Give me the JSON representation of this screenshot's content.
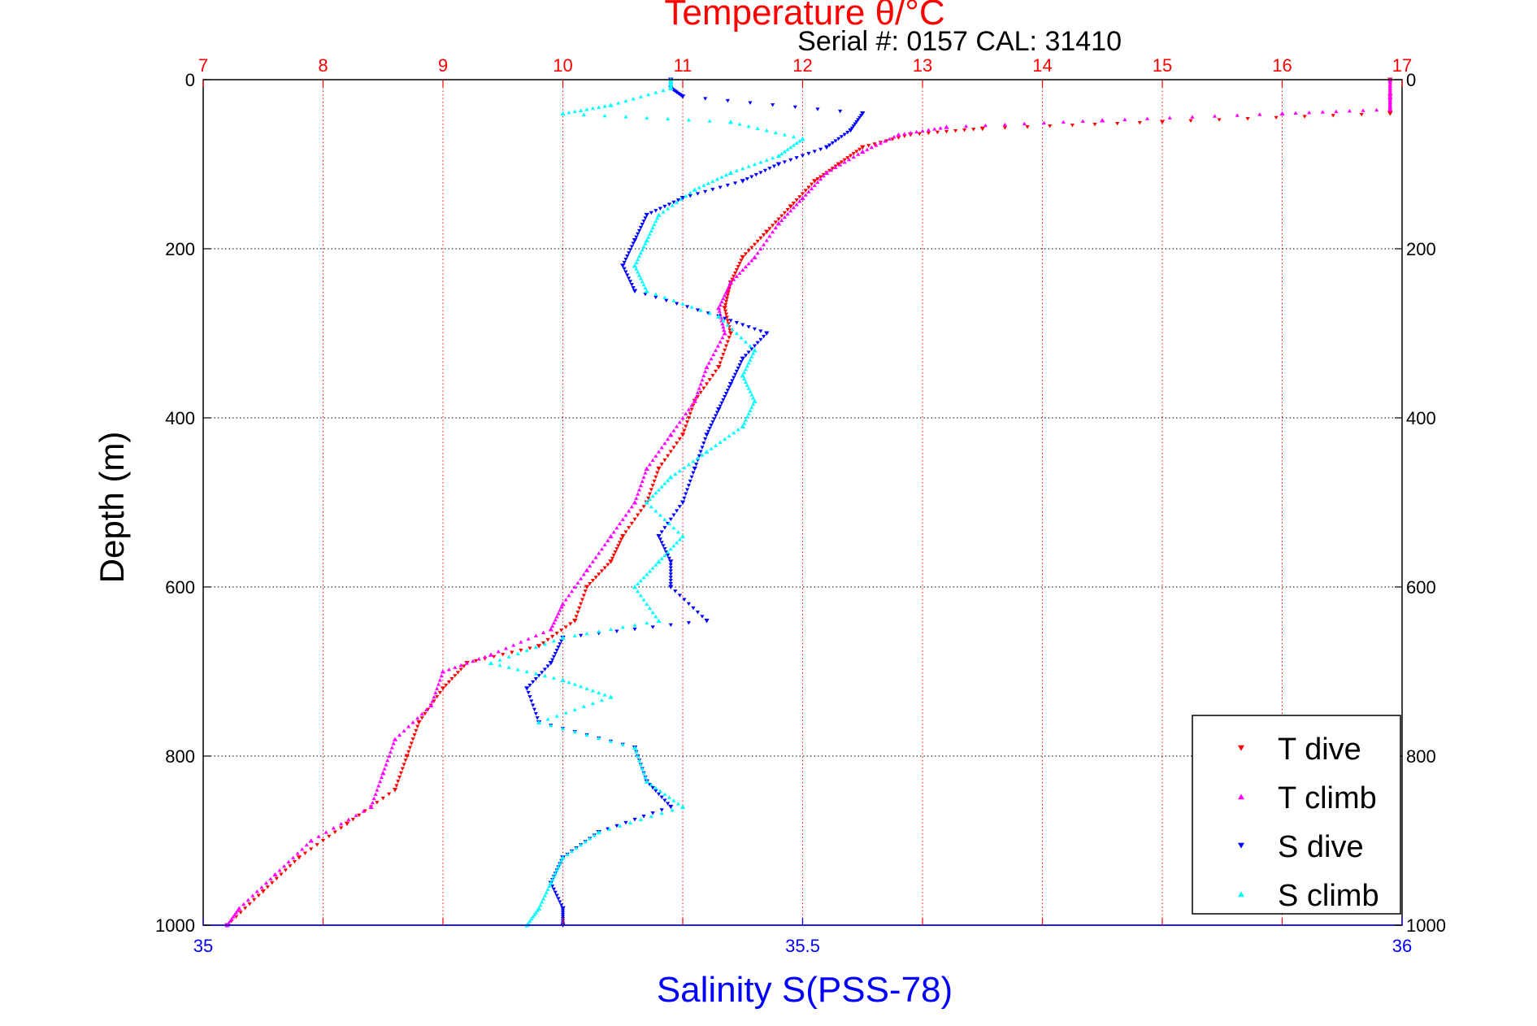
{
  "chart_data": {
    "type": "scatter",
    "title": "Temperature θ/°C",
    "subtitle": "Serial #: 0157  CAL: 31410",
    "xlabel_bottom": "Salinity S(PSS-78)",
    "xlabel_top": "Temperature θ/°C",
    "ylabel": "Depth (m)",
    "ylim": [
      0,
      1000
    ],
    "y_reversed": true,
    "xlim_bottom": [
      35,
      36
    ],
    "xlim_top": [
      7,
      17
    ],
    "y_ticks": [
      "0",
      "200",
      "400",
      "600",
      "800",
      "1000"
    ],
    "y_tick_values": [
      0,
      200,
      400,
      600,
      800,
      1000
    ],
    "x_bottom_ticks": [
      "35",
      "35.5",
      "36"
    ],
    "x_bottom_tick_values": [
      35,
      35.5,
      36
    ],
    "x_top_ticks": [
      "7",
      "8",
      "9",
      "10",
      "11",
      "12",
      "13",
      "14",
      "15",
      "16",
      "17"
    ],
    "x_top_tick_values": [
      7,
      8,
      9,
      10,
      11,
      12,
      13,
      14,
      15,
      16,
      17
    ],
    "grid": true,
    "legend_position": "bottom-right",
    "colors": {
      "top_axis": "#ff0000",
      "bottom_axis": "#0000ff",
      "grid": "#000000",
      "frame": "#000000"
    },
    "series": [
      {
        "name": "T dive",
        "axis": "top",
        "marker": "down-triangle",
        "color": "#ff0000",
        "points": [
          [
            16.9,
            0
          ],
          [
            16.9,
            20
          ],
          [
            16.9,
            40
          ],
          [
            15.0,
            50
          ],
          [
            13.5,
            58
          ],
          [
            12.9,
            65
          ],
          [
            12.5,
            80
          ],
          [
            12.3,
            100
          ],
          [
            12.1,
            120
          ],
          [
            11.9,
            150
          ],
          [
            11.7,
            180
          ],
          [
            11.5,
            210
          ],
          [
            11.4,
            240
          ],
          [
            11.35,
            270
          ],
          [
            11.4,
            300
          ],
          [
            11.3,
            340
          ],
          [
            11.1,
            380
          ],
          [
            11.0,
            420
          ],
          [
            10.8,
            460
          ],
          [
            10.7,
            500
          ],
          [
            10.5,
            540
          ],
          [
            10.4,
            570
          ],
          [
            10.2,
            600
          ],
          [
            10.1,
            640
          ],
          [
            9.8,
            670
          ],
          [
            9.2,
            690
          ],
          [
            9.0,
            720
          ],
          [
            8.8,
            760
          ],
          [
            8.7,
            800
          ],
          [
            8.6,
            840
          ],
          [
            8.2,
            880
          ],
          [
            7.8,
            920
          ],
          [
            7.5,
            960
          ],
          [
            7.2,
            1000
          ]
        ]
      },
      {
        "name": "T climb",
        "axis": "top",
        "marker": "up-triangle",
        "color": "#ff00ff",
        "points": [
          [
            16.9,
            0
          ],
          [
            16.9,
            20
          ],
          [
            16.9,
            35
          ],
          [
            16.0,
            40
          ],
          [
            14.5,
            48
          ],
          [
            13.2,
            56
          ],
          [
            12.8,
            65
          ],
          [
            12.5,
            85
          ],
          [
            12.2,
            110
          ],
          [
            12.0,
            140
          ],
          [
            11.8,
            170
          ],
          [
            11.6,
            210
          ],
          [
            11.4,
            240
          ],
          [
            11.3,
            270
          ],
          [
            11.35,
            300
          ],
          [
            11.2,
            340
          ],
          [
            11.1,
            380
          ],
          [
            10.9,
            420
          ],
          [
            10.7,
            460
          ],
          [
            10.6,
            500
          ],
          [
            10.4,
            540
          ],
          [
            10.2,
            580
          ],
          [
            10.0,
            620
          ],
          [
            9.9,
            650
          ],
          [
            9.4,
            680
          ],
          [
            9.0,
            700
          ],
          [
            8.9,
            740
          ],
          [
            8.6,
            780
          ],
          [
            8.5,
            820
          ],
          [
            8.4,
            860
          ],
          [
            7.9,
            900
          ],
          [
            7.6,
            940
          ],
          [
            7.3,
            980
          ],
          [
            7.2,
            1000
          ]
        ]
      },
      {
        "name": "S dive",
        "axis": "bottom",
        "marker": "down-triangle",
        "color": "#0000ff",
        "points": [
          [
            35.39,
            0
          ],
          [
            35.39,
            10
          ],
          [
            35.4,
            20
          ],
          [
            35.55,
            40
          ],
          [
            35.54,
            60
          ],
          [
            35.52,
            80
          ],
          [
            35.48,
            100
          ],
          [
            35.45,
            120
          ],
          [
            35.4,
            140
          ],
          [
            35.37,
            160
          ],
          [
            35.36,
            190
          ],
          [
            35.35,
            220
          ],
          [
            35.36,
            250
          ],
          [
            35.43,
            280
          ],
          [
            35.47,
            300
          ],
          [
            35.45,
            330
          ],
          [
            35.44,
            360
          ],
          [
            35.43,
            390
          ],
          [
            35.42,
            420
          ],
          [
            35.41,
            460
          ],
          [
            35.4,
            500
          ],
          [
            35.38,
            540
          ],
          [
            35.39,
            570
          ],
          [
            35.39,
            600
          ],
          [
            35.42,
            640
          ],
          [
            35.3,
            660
          ],
          [
            35.29,
            690
          ],
          [
            35.27,
            720
          ],
          [
            35.28,
            760
          ],
          [
            35.36,
            790
          ],
          [
            35.37,
            830
          ],
          [
            35.39,
            860
          ],
          [
            35.33,
            890
          ],
          [
            35.3,
            920
          ],
          [
            35.29,
            950
          ],
          [
            35.3,
            980
          ],
          [
            35.3,
            1000
          ]
        ]
      },
      {
        "name": "S climb",
        "axis": "bottom",
        "marker": "up-triangle",
        "color": "#00ffff",
        "points": [
          [
            35.39,
            0
          ],
          [
            35.39,
            10
          ],
          [
            35.34,
            30
          ],
          [
            35.3,
            40
          ],
          [
            35.44,
            50
          ],
          [
            35.5,
            70
          ],
          [
            35.48,
            90
          ],
          [
            35.44,
            110
          ],
          [
            35.41,
            130
          ],
          [
            35.38,
            160
          ],
          [
            35.37,
            190
          ],
          [
            35.36,
            220
          ],
          [
            35.37,
            250
          ],
          [
            35.43,
            280
          ],
          [
            35.46,
            320
          ],
          [
            35.45,
            350
          ],
          [
            35.46,
            380
          ],
          [
            35.45,
            410
          ],
          [
            35.42,
            440
          ],
          [
            35.39,
            470
          ],
          [
            35.37,
            500
          ],
          [
            35.4,
            540
          ],
          [
            35.38,
            570
          ],
          [
            35.36,
            600
          ],
          [
            35.38,
            640
          ],
          [
            35.3,
            660
          ],
          [
            35.24,
            690
          ],
          [
            35.3,
            710
          ],
          [
            35.34,
            730
          ],
          [
            35.28,
            760
          ],
          [
            35.36,
            790
          ],
          [
            35.37,
            830
          ],
          [
            35.4,
            860
          ],
          [
            35.33,
            890
          ],
          [
            35.3,
            920
          ],
          [
            35.29,
            950
          ],
          [
            35.28,
            980
          ],
          [
            35.27,
            1000
          ]
        ]
      }
    ]
  }
}
